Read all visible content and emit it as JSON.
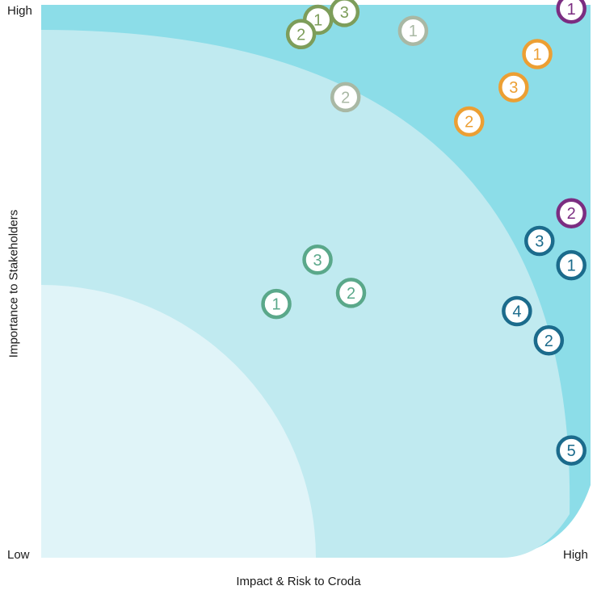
{
  "chart_data": {
    "type": "scatter",
    "title": "",
    "xlabel": "Impact & Risk to Croda",
    "ylabel": "Importance to Stakeholders",
    "x_ticks": {
      "low": "Low",
      "high": "High"
    },
    "y_ticks": {
      "low": "Low",
      "high": "High"
    },
    "xlim": [
      0,
      1
    ],
    "ylim": [
      0,
      1
    ],
    "zones": [
      {
        "level": "low",
        "color": "#e0f4f8"
      },
      {
        "level": "medium",
        "color": "#c0eaf0"
      },
      {
        "level": "high",
        "color": "#8cdde8"
      }
    ],
    "series": [
      {
        "color": "#7d9d5a",
        "points": [
          {
            "x": 0.504,
            "y": 0.973,
            "label": "1"
          },
          {
            "x": 0.473,
            "y": 0.947,
            "label": "2"
          },
          {
            "x": 0.552,
            "y": 0.987,
            "label": "3"
          }
        ]
      },
      {
        "color": "#a9b8a4",
        "points": [
          {
            "x": 0.677,
            "y": 0.953,
            "label": "1"
          },
          {
            "x": 0.554,
            "y": 0.833,
            "label": "2"
          }
        ]
      },
      {
        "color": "#ec9f33",
        "points": [
          {
            "x": 0.903,
            "y": 0.911,
            "label": "1"
          },
          {
            "x": 0.779,
            "y": 0.789,
            "label": "2"
          },
          {
            "x": 0.86,
            "y": 0.851,
            "label": "3"
          }
        ]
      },
      {
        "color": "#7b2d81",
        "points": [
          {
            "x": 0.965,
            "y": 0.993,
            "label": "1"
          },
          {
            "x": 0.965,
            "y": 0.623,
            "label": "2"
          }
        ]
      },
      {
        "color": "#1b6b8c",
        "points": [
          {
            "x": 0.965,
            "y": 0.529,
            "label": "1"
          },
          {
            "x": 0.924,
            "y": 0.393,
            "label": "2"
          },
          {
            "x": 0.907,
            "y": 0.573,
            "label": "3"
          },
          {
            "x": 0.866,
            "y": 0.446,
            "label": "4"
          },
          {
            "x": 0.965,
            "y": 0.194,
            "label": "5"
          }
        ]
      },
      {
        "color": "#5aa88a",
        "points": [
          {
            "x": 0.428,
            "y": 0.459,
            "label": "1"
          },
          {
            "x": 0.564,
            "y": 0.479,
            "label": "2"
          },
          {
            "x": 0.503,
            "y": 0.539,
            "label": "3"
          }
        ]
      }
    ]
  }
}
